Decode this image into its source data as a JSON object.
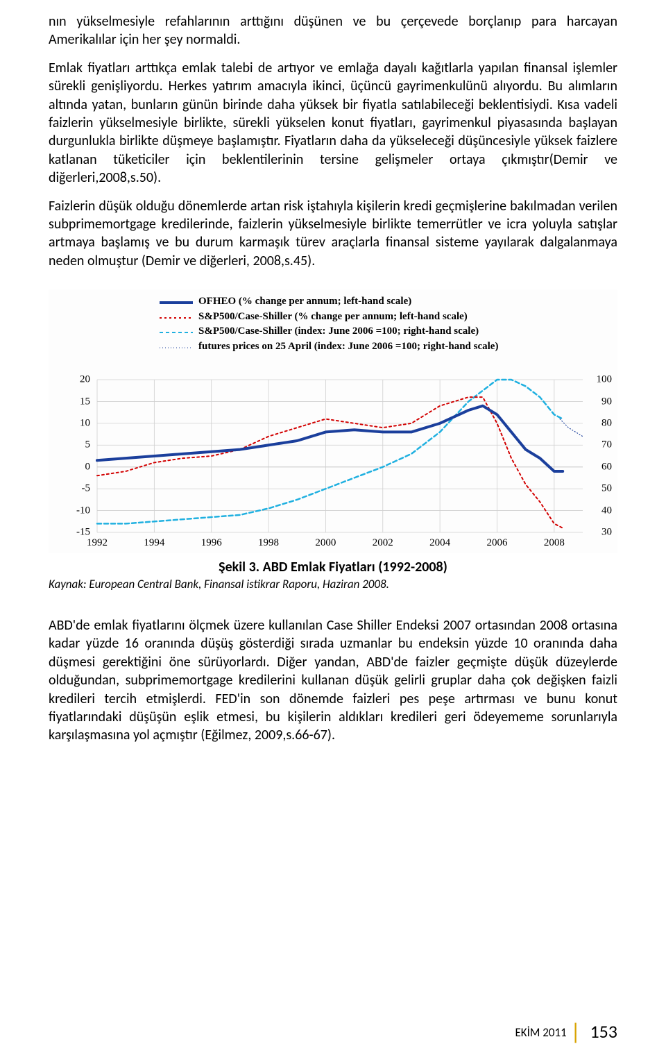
{
  "paragraphs": {
    "p1": "nın yükselmesiyle refahlarının arttığını düşünen ve bu çerçevede borçlanıp para harcayan Amerikalılar için her şey normaldi.",
    "p2": "Emlak fiyatları arttıkça emlak talebi de artıyor ve emlağa dayalı kağıtlarla yapılan finansal işlemler sürekli genişliyordu. Herkes yatırım amacıyla ikinci, üçüncü gayrimenkulünü alıyordu. Bu alımların altında yatan, bunların günün birinde daha yüksek bir fiyatla satılabileceği beklentisiydi. Kısa vadeli faizlerin yükselmesiyle birlikte, sürekli yükselen konut fiyatları, gayrimenkul piyasasında başlayan durgunlukla birlikte düşmeye başlamıştır. Fiyatların daha da yükseleceği düşüncesiyle yüksek faizlere katlanan tüketiciler için beklentilerinin tersine gelişmeler ortaya çıkmıştır(Demir ve diğerleri,2008,s.50).",
    "p3": "Faizlerin düşük olduğu dönemlerde artan risk iştahıyla kişilerin kredi geçmişlerine bakılmadan verilen subprimemortgage kredilerinde, faizlerin yükselmesiyle birlikte temerrütler ve icra yoluyla satışlar artmaya başlamış ve bu durum karmaşık türev araçlarla finansal sisteme yayılarak dalgalanmaya neden olmuştur (Demir ve diğerleri, 2008,s.45).",
    "p4": "ABD'de emlak fiyatlarını ölçmek üzere kullanılan Case Shiller Endeksi 2007 ortasından 2008 ortasına kadar yüzde 16 oranında düşüş gösterdiği sırada uzmanlar bu endeksin yüzde 10 oranında daha düşmesi gerektiğini öne sürüyorlardı. Diğer yandan, ABD'de faizler geçmişte düşük düzeylerde olduğundan, subprimemortgage kredilerini kullanan düşük gelirli gruplar daha çok değişken faizli kredileri tercih etmişlerdi. FED'in son dönemde faizleri pes peşe artırması ve bunu konut fiyatlarındaki düşüşün eşlik etmesi, bu kişilerin aldıkları kredileri geri ödeyememe sorunlarıyla karşılaşmasına yol açmıştır (Eğilmez, 2009,s.66-67)."
  },
  "chart": {
    "type": "line",
    "legend": [
      {
        "label": "OFHEO (% change per annum; left-hand scale)",
        "color": "#1b3f9c",
        "stroke": 4,
        "dash": "none"
      },
      {
        "label": "S&P500/Case-Shiller (% change per annum; left-hand scale)",
        "color": "#d20000",
        "stroke": 2,
        "dash": "3,4"
      },
      {
        "label": "S&P500/Case-Shiller (index: June 2006 =100; right-hand scale)",
        "color": "#1fb0e0",
        "stroke": 2,
        "dash": "5,4"
      },
      {
        "label": "futures prices on 25 April (index: June 2006 =100; right-hand scale)",
        "color": "#1b3f9c",
        "stroke": 1,
        "dash": "1,3"
      }
    ],
    "left_axis": {
      "min": -15,
      "max": 20,
      "ticks": [
        -15,
        -10,
        -5,
        0,
        5,
        10,
        15,
        20
      ]
    },
    "right_axis": {
      "min": 30,
      "max": 100,
      "ticks": [
        30,
        40,
        50,
        60,
        70,
        80,
        90,
        100
      ]
    },
    "x_axis": {
      "min": 1992,
      "max": 2009,
      "ticks": [
        1992,
        1994,
        1996,
        1998,
        2000,
        2002,
        2004,
        2006,
        2008
      ]
    },
    "grid_color": "#cfcfcf",
    "background_color": "#ffffff",
    "series": {
      "ofheo": {
        "axis": "left",
        "color": "#1b3f9c",
        "stroke": 4,
        "points": [
          [
            1992,
            1.5
          ],
          [
            1993,
            2
          ],
          [
            1994,
            2.5
          ],
          [
            1995,
            3
          ],
          [
            1996,
            3.5
          ],
          [
            1997,
            4
          ],
          [
            1998,
            5
          ],
          [
            1999,
            6
          ],
          [
            2000,
            8
          ],
          [
            2001,
            8.5
          ],
          [
            2002,
            8
          ],
          [
            2003,
            8
          ],
          [
            2004,
            10
          ],
          [
            2005,
            13
          ],
          [
            2005.5,
            14
          ],
          [
            2006,
            12
          ],
          [
            2006.5,
            8
          ],
          [
            2007,
            4
          ],
          [
            2007.5,
            2
          ],
          [
            2008,
            -1
          ],
          [
            2008.3,
            -1
          ]
        ]
      },
      "cs_pct": {
        "axis": "left",
        "color": "#d20000",
        "stroke": 2,
        "dash": "3,4",
        "points": [
          [
            1992,
            -2
          ],
          [
            1993,
            -1
          ],
          [
            1994,
            1
          ],
          [
            1995,
            2
          ],
          [
            1996,
            2.5
          ],
          [
            1997,
            4
          ],
          [
            1998,
            7
          ],
          [
            1999,
            9
          ],
          [
            2000,
            11
          ],
          [
            2001,
            10
          ],
          [
            2002,
            9
          ],
          [
            2003,
            10
          ],
          [
            2004,
            14
          ],
          [
            2005,
            16
          ],
          [
            2005.5,
            16
          ],
          [
            2006,
            10
          ],
          [
            2006.5,
            2
          ],
          [
            2007,
            -4
          ],
          [
            2007.5,
            -8
          ],
          [
            2008,
            -13
          ],
          [
            2008.3,
            -14
          ]
        ]
      },
      "cs_index": {
        "axis": "right",
        "color": "#1fb0e0",
        "stroke": 2.5,
        "dash": "6,4",
        "points": [
          [
            1992,
            34
          ],
          [
            1993,
            34
          ],
          [
            1994,
            35
          ],
          [
            1995,
            36
          ],
          [
            1996,
            37
          ],
          [
            1997,
            38
          ],
          [
            1998,
            41
          ],
          [
            1999,
            45
          ],
          [
            2000,
            50
          ],
          [
            2001,
            55
          ],
          [
            2002,
            60
          ],
          [
            2003,
            66
          ],
          [
            2004,
            76
          ],
          [
            2005,
            90
          ],
          [
            2005.8,
            98
          ],
          [
            2006,
            100
          ],
          [
            2006.5,
            100
          ],
          [
            2007,
            97
          ],
          [
            2007.5,
            92
          ],
          [
            2008,
            84
          ],
          [
            2008.3,
            82
          ]
        ]
      },
      "futures": {
        "axis": "right",
        "color": "#1b3f9c",
        "stroke": 1.2,
        "dash": "1,3",
        "points": [
          [
            2008.2,
            82
          ],
          [
            2008.5,
            78
          ],
          [
            2009,
            74
          ]
        ]
      }
    }
  },
  "caption": "Şekil 3. ABD Emlak Fiyatları (1992-2008)",
  "source": "Kaynak: European Central Bank, Finansal istikrar Raporu, Haziran 2008.",
  "footer": {
    "month": "EKİM 2011",
    "page": "153"
  }
}
